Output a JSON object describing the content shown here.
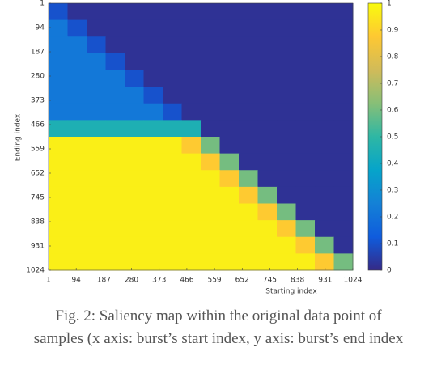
{
  "chart_data": {
    "type": "heatmap",
    "xlabel": "Starting index",
    "ylabel": "Ending index",
    "xlim": [
      1,
      1024
    ],
    "ylim": [
      1,
      1024
    ],
    "xticks": [
      1,
      94,
      187,
      280,
      373,
      466,
      559,
      652,
      745,
      838,
      931,
      1024
    ],
    "yticks": [
      1,
      94,
      187,
      280,
      373,
      466,
      559,
      652,
      745,
      838,
      931,
      1024
    ],
    "clim": [
      0,
      1
    ],
    "cticks": [
      0,
      0.1,
      0.2,
      0.3,
      0.4,
      0.5,
      0.6,
      0.7,
      0.8,
      0.9,
      1
    ],
    "colormap": [
      "#352a87",
      "#0f5cdd",
      "#1481d6",
      "#06a4ca",
      "#2eb7a4",
      "#87bf77",
      "#d1bb59",
      "#fec832",
      "#f9fb0e"
    ],
    "z": [
      [
        0.1,
        0.02,
        0.02,
        0.02,
        0.02,
        0.02,
        0.02,
        0.02,
        0.02,
        0.02,
        0.02,
        0.02,
        0.02,
        0.02,
        0.02,
        0.02
      ],
      [
        0.22,
        0.1,
        0.02,
        0.02,
        0.02,
        0.02,
        0.02,
        0.02,
        0.02,
        0.02,
        0.02,
        0.02,
        0.02,
        0.02,
        0.02,
        0.02
      ],
      [
        0.22,
        0.22,
        0.1,
        0.02,
        0.02,
        0.02,
        0.02,
        0.02,
        0.02,
        0.02,
        0.02,
        0.02,
        0.02,
        0.02,
        0.02,
        0.02
      ],
      [
        0.22,
        0.22,
        0.22,
        0.1,
        0.02,
        0.02,
        0.02,
        0.02,
        0.02,
        0.02,
        0.02,
        0.02,
        0.02,
        0.02,
        0.02,
        0.02
      ],
      [
        0.22,
        0.22,
        0.22,
        0.22,
        0.1,
        0.02,
        0.02,
        0.02,
        0.02,
        0.02,
        0.02,
        0.02,
        0.02,
        0.02,
        0.02,
        0.02
      ],
      [
        0.22,
        0.22,
        0.22,
        0.22,
        0.22,
        0.1,
        0.02,
        0.02,
        0.02,
        0.02,
        0.02,
        0.02,
        0.02,
        0.02,
        0.02,
        0.02
      ],
      [
        0.22,
        0.22,
        0.22,
        0.22,
        0.22,
        0.22,
        0.1,
        0.02,
        0.02,
        0.02,
        0.02,
        0.02,
        0.02,
        0.02,
        0.02,
        0.02
      ],
      [
        0.45,
        0.45,
        0.45,
        0.45,
        0.45,
        0.45,
        0.45,
        0.45,
        0.02,
        0.02,
        0.02,
        0.02,
        0.02,
        0.02,
        0.02,
        0.02
      ],
      [
        0.97,
        0.97,
        0.97,
        0.97,
        0.97,
        0.97,
        0.97,
        0.88,
        0.6,
        0.02,
        0.02,
        0.02,
        0.02,
        0.02,
        0.02,
        0.02
      ],
      [
        0.97,
        0.97,
        0.97,
        0.97,
        0.97,
        0.97,
        0.97,
        0.97,
        0.88,
        0.6,
        0.02,
        0.02,
        0.02,
        0.02,
        0.02,
        0.02
      ],
      [
        0.97,
        0.97,
        0.97,
        0.97,
        0.97,
        0.97,
        0.97,
        0.97,
        0.97,
        0.88,
        0.6,
        0.02,
        0.02,
        0.02,
        0.02,
        0.02
      ],
      [
        0.97,
        0.97,
        0.97,
        0.97,
        0.97,
        0.97,
        0.97,
        0.97,
        0.97,
        0.97,
        0.88,
        0.6,
        0.02,
        0.02,
        0.02,
        0.02
      ],
      [
        0.97,
        0.97,
        0.97,
        0.97,
        0.97,
        0.97,
        0.97,
        0.97,
        0.97,
        0.97,
        0.97,
        0.88,
        0.6,
        0.02,
        0.02,
        0.02
      ],
      [
        0.97,
        0.97,
        0.97,
        0.97,
        0.97,
        0.97,
        0.97,
        0.97,
        0.97,
        0.97,
        0.97,
        0.97,
        0.88,
        0.6,
        0.02,
        0.02
      ],
      [
        0.97,
        0.97,
        0.97,
        0.97,
        0.97,
        0.97,
        0.97,
        0.97,
        0.97,
        0.97,
        0.97,
        0.97,
        0.97,
        0.88,
        0.6,
        0.02
      ],
      [
        0.97,
        0.97,
        0.97,
        0.97,
        0.97,
        0.97,
        0.97,
        0.97,
        0.97,
        0.97,
        0.97,
        0.97,
        0.97,
        0.97,
        0.88,
        0.6
      ]
    ]
  },
  "caption": [
    "Fig. 2: Saliency map within the original data point of",
    "samples (x axis: burst’s start index, y axis: burst’s end index"
  ]
}
